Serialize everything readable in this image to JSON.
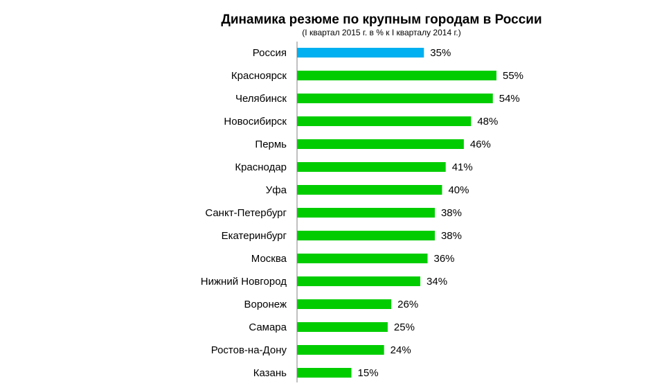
{
  "chart_data": {
    "type": "bar",
    "orientation": "horizontal",
    "title": "Динамика резюме по крупным городам в России",
    "subtitle": "(I квартал 2015 г. в % к I кварталу 2014 г.)",
    "categories": [
      "Россия",
      "Красноярск",
      "Челябинск",
      "Новосибирск",
      "Пермь",
      "Краснодар",
      "Уфа",
      "Санкт-Петербург",
      "Екатеринбург",
      "Москва",
      "Нижний  Новгород",
      "Воронеж",
      "Самара",
      "Ростов-на-Дону",
      "Казань"
    ],
    "values": [
      35,
      55,
      54,
      48,
      46,
      41,
      40,
      38,
      38,
      36,
      34,
      26,
      25,
      24,
      15
    ],
    "value_labels": [
      "35%",
      "55%",
      "54%",
      "48%",
      "46%",
      "41%",
      "40%",
      "38%",
      "38%",
      "36%",
      "34%",
      "26%",
      "25%",
      "24%",
      "15%"
    ],
    "colors": {
      "highlight": "#00b0f0",
      "default": "#00cc00",
      "axis": "#808080"
    },
    "highlight_index": 0,
    "xlim": [
      0,
      55
    ],
    "grid": false,
    "legend": "none"
  }
}
